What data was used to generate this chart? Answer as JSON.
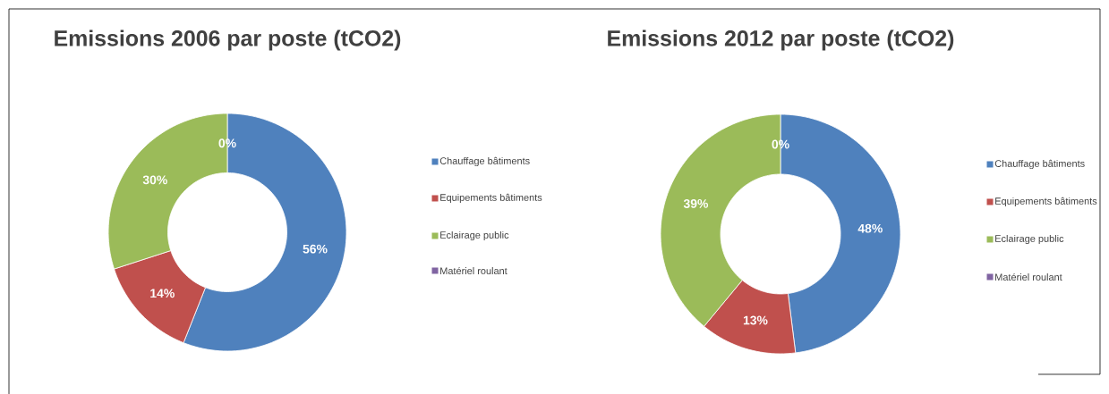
{
  "chart_data": [
    {
      "type": "donut",
      "title": "Emissions 2006 par poste (tCO2)",
      "categories": [
        "Chauffage bâtiments",
        "Equipements bâtiments",
        "Eclairage public",
        "Matériel roulant"
      ],
      "values": [
        56,
        14,
        30,
        0
      ],
      "value_labels": [
        "56%",
        "14%",
        "30%",
        "0%"
      ],
      "colors": [
        "#4f81bd",
        "#c0504d",
        "#9bbb59",
        "#8064a2"
      ],
      "legend": "right"
    },
    {
      "type": "donut",
      "title": "Emissions 2012 par poste (tCO2)",
      "categories": [
        "Chauffage bâtiments",
        "Equipements bâtiments",
        "Eclairage public",
        "Matériel roulant"
      ],
      "values": [
        48,
        13,
        39,
        0
      ],
      "value_labels": [
        "48%",
        "13%",
        "39%",
        "0%"
      ],
      "colors": [
        "#4f81bd",
        "#c0504d",
        "#9bbb59",
        "#8064a2"
      ],
      "legend": "right"
    }
  ]
}
